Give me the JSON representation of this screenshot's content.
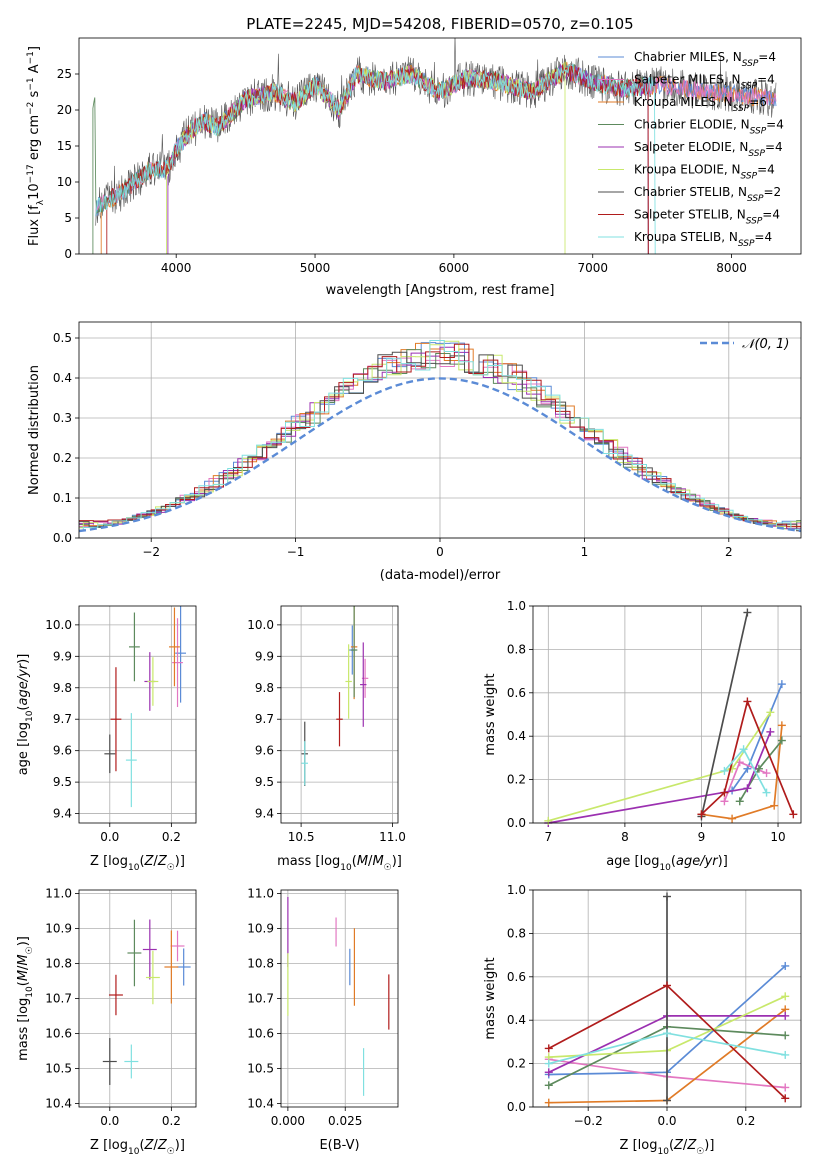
{
  "figure_title": "PLATE=2245, MJD=54208, FIBERID=0570, z=0.105",
  "colors": {
    "chabrier_miles": "#5b8bd6",
    "salpeter_miles": "#e377c2",
    "kroupa_miles": "#e07b27",
    "chabrier_elodie": "#5d8a5d",
    "salpeter_elodie": "#9b30b0",
    "kroupa_elodie": "#c8e86b",
    "chabrier_stelib": "#4d4d4d",
    "salpeter_stelib": "#b01c1c",
    "kroupa_stelib": "#80e0e0"
  },
  "chart_data": [
    {
      "type": "line",
      "panel": "spectrum",
      "title": "PLATE=2245, MJD=54208, FIBERID=0570, z=0.105",
      "xlabel": "wavelength [Angstrom, rest frame]",
      "ylabel": "Flux [f_λ 10^-17 erg cm^-2 s^-1 A^-1]",
      "xlim": [
        3300,
        8500
      ],
      "ylim": [
        0,
        30
      ],
      "xticks": [
        4000,
        5000,
        6000,
        7000,
        8000
      ],
      "yticks": [
        0,
        5,
        10,
        15,
        20,
        25
      ],
      "grid": false,
      "legend_position": "right",
      "legend": [
        {
          "label": "Chabrier MILES, N_SSP=4",
          "key": "chabrier_miles"
        },
        {
          "label": "Salpeter MILES, N_SSP=4",
          "key": "salpeter_miles"
        },
        {
          "label": "Kroupa MILES, N_SSP=6",
          "key": "kroupa_miles"
        },
        {
          "label": "Chabrier ELODIE, N_SSP=4",
          "key": "chabrier_elodie"
        },
        {
          "label": "Salpeter ELODIE, N_SSP=4",
          "key": "salpeter_elodie"
        },
        {
          "label": "Kroupa ELODIE, N_SSP=4",
          "key": "kroupa_elodie"
        },
        {
          "label": "Chabrier STELIB, N_SSP=2",
          "key": "chabrier_stelib"
        },
        {
          "label": "Salpeter STELIB, N_SSP=4",
          "key": "salpeter_stelib"
        },
        {
          "label": "Kroupa STELIB, N_SSP=4",
          "key": "kroupa_stelib"
        }
      ],
      "spectrum_envelope": {
        "x": [
          3420,
          3600,
          3800,
          3950,
          4000,
          4100,
          4200,
          4300,
          4400,
          4500,
          4700,
          4860,
          5000,
          5175,
          5300,
          5500,
          5700,
          5890,
          6100,
          6300,
          6560,
          6800,
          7000,
          7200,
          7500,
          7800,
          8100,
          8300
        ],
        "y": [
          6.5,
          8.5,
          11.5,
          12.0,
          14.5,
          17.0,
          18.5,
          17.5,
          19.5,
          21.5,
          22.5,
          21.0,
          23.5,
          20.0,
          25.0,
          24.0,
          25.0,
          22.5,
          24.5,
          24.0,
          22.5,
          25.5,
          24.0,
          23.0,
          23.5,
          22.5,
          22.0,
          21.5
        ]
      }
    },
    {
      "type": "area",
      "panel": "residual_distribution",
      "xlabel": "(data-model)/error",
      "ylabel": "Normed distribution",
      "xlim": [
        -2.5,
        2.5
      ],
      "ylim": [
        0,
        0.54
      ],
      "xticks": [
        -2,
        -1,
        0,
        1,
        2
      ],
      "yticks": [
        0.0,
        0.1,
        0.2,
        0.3,
        0.4,
        0.5
      ],
      "grid": true,
      "legend_position": "top-right",
      "legend": [
        {
          "label": "𝒩(0, 1)"
        }
      ],
      "normal_curve": {
        "mean": 0,
        "sigma": 1
      }
    },
    {
      "type": "scatter",
      "panel": "age_vs_Z",
      "xlabel": "Z [log10(Z/Z☉)]",
      "ylabel": "age [log10(age/yr)]",
      "xlim": [
        -0.1,
        0.28
      ],
      "ylim": [
        9.37,
        10.06
      ],
      "xticks": [
        0.0,
        0.2
      ],
      "yticks": [
        9.4,
        9.5,
        9.6,
        9.7,
        9.8,
        9.9,
        10.0
      ],
      "grid": true,
      "series": [
        {
          "key": "chabrier_miles",
          "x": 0.23,
          "y": 9.91
        },
        {
          "key": "salpeter_miles",
          "x": 0.22,
          "y": 9.88
        },
        {
          "key": "kroupa_miles",
          "x": 0.21,
          "y": 9.93
        },
        {
          "key": "chabrier_elodie",
          "x": 0.08,
          "y": 9.93
        },
        {
          "key": "salpeter_elodie",
          "x": 0.13,
          "y": 9.82
        },
        {
          "key": "kroupa_elodie",
          "x": 0.14,
          "y": 9.82
        },
        {
          "key": "chabrier_stelib",
          "x": 0.0,
          "y": 9.59
        },
        {
          "key": "salpeter_stelib",
          "x": 0.02,
          "y": 9.7
        },
        {
          "key": "kroupa_stelib",
          "x": 0.07,
          "y": 9.57
        }
      ]
    },
    {
      "type": "scatter",
      "panel": "age_vs_mass",
      "xlabel": "mass [log10(M/M☉)]",
      "xlim": [
        10.39,
        11.03
      ],
      "ylim": [
        9.37,
        10.06
      ],
      "xticks": [
        10.5,
        11.0
      ],
      "yticks": [
        9.4,
        9.5,
        9.6,
        9.7,
        9.8,
        9.9,
        10.0
      ],
      "grid": true,
      "series": [
        {
          "key": "chabrier_miles",
          "x": 10.78,
          "y": 9.92
        },
        {
          "key": "salpeter_miles",
          "x": 10.85,
          "y": 9.83
        },
        {
          "key": "kroupa_miles",
          "x": 10.79,
          "y": 9.93
        },
        {
          "key": "chabrier_elodie",
          "x": 10.79,
          "y": 9.92
        },
        {
          "key": "salpeter_elodie",
          "x": 10.84,
          "y": 9.81
        },
        {
          "key": "kroupa_elodie",
          "x": 10.76,
          "y": 9.82
        },
        {
          "key": "chabrier_stelib",
          "x": 10.52,
          "y": 9.59
        },
        {
          "key": "salpeter_stelib",
          "x": 10.71,
          "y": 9.7
        },
        {
          "key": "kroupa_stelib",
          "x": 10.52,
          "y": 9.56
        }
      ]
    },
    {
      "type": "line",
      "panel": "mass_weight_vs_age",
      "xlabel": "age [log10(age/yr)]",
      "ylabel": "mass weight",
      "xlim": [
        6.8,
        10.3
      ],
      "ylim": [
        0.0,
        1.0
      ],
      "xticks": [
        7,
        8,
        9,
        10
      ],
      "yticks": [
        0.0,
        0.2,
        0.4,
        0.6,
        0.8,
        1.0
      ],
      "grid": true,
      "series": [
        {
          "key": "chabrier_miles",
          "x": [
            9.4,
            9.6,
            10.05
          ],
          "y": [
            0.15,
            0.25,
            0.64
          ]
        },
        {
          "key": "salpeter_miles",
          "x": [
            9.3,
            9.5,
            9.85
          ],
          "y": [
            0.1,
            0.28,
            0.23
          ]
        },
        {
          "key": "kroupa_miles",
          "x": [
            9.0,
            9.4,
            9.95,
            10.05
          ],
          "y": [
            0.04,
            0.02,
            0.08,
            0.45
          ]
        },
        {
          "key": "chabrier_elodie",
          "x": [
            9.5,
            9.75,
            10.05
          ],
          "y": [
            0.1,
            0.25,
            0.38
          ]
        },
        {
          "key": "salpeter_elodie",
          "x": [
            7.0,
            9.6,
            9.9
          ],
          "y": [
            0.0,
            0.16,
            0.42
          ]
        },
        {
          "key": "kroupa_elodie",
          "x": [
            7.0,
            9.4,
            9.9
          ],
          "y": [
            0.01,
            0.25,
            0.51
          ]
        },
        {
          "key": "chabrier_stelib",
          "x": [
            9.0,
            9.6
          ],
          "y": [
            0.03,
            0.97
          ]
        },
        {
          "key": "salpeter_stelib",
          "x": [
            9.0,
            9.3,
            9.6,
            10.2
          ],
          "y": [
            0.04,
            0.14,
            0.56,
            0.04
          ]
        },
        {
          "key": "kroupa_stelib",
          "x": [
            9.3,
            9.55,
            9.85
          ],
          "y": [
            0.24,
            0.34,
            0.14
          ]
        }
      ]
    },
    {
      "type": "scatter",
      "panel": "mass_vs_Z",
      "xlabel": "Z [log10(Z/Z☉)]",
      "ylabel": "mass [log10(M/M☉)]",
      "xlim": [
        -0.1,
        0.28
      ],
      "ylim": [
        10.39,
        11.01
      ],
      "xticks": [
        0.0,
        0.2
      ],
      "yticks": [
        10.4,
        10.5,
        10.6,
        10.7,
        10.8,
        10.9,
        11.0
      ],
      "grid": true,
      "series": [
        {
          "key": "chabrier_miles",
          "x": 0.24,
          "y": 10.79
        },
        {
          "key": "salpeter_miles",
          "x": 0.22,
          "y": 10.85
        },
        {
          "key": "kroupa_miles",
          "x": 0.2,
          "y": 10.79
        },
        {
          "key": "chabrier_elodie",
          "x": 0.08,
          "y": 10.83
        },
        {
          "key": "salpeter_elodie",
          "x": 0.13,
          "y": 10.84
        },
        {
          "key": "kroupa_elodie",
          "x": 0.14,
          "y": 10.76
        },
        {
          "key": "chabrier_stelib",
          "x": 0.0,
          "y": 10.52
        },
        {
          "key": "salpeter_stelib",
          "x": 0.02,
          "y": 10.71
        },
        {
          "key": "kroupa_stelib",
          "x": 0.07,
          "y": 10.52
        }
      ]
    },
    {
      "type": "scatter",
      "panel": "mass_vs_ebv",
      "xlabel": "E(B-V)",
      "xlim": [
        -0.003,
        0.048
      ],
      "ylim": [
        10.39,
        11.01
      ],
      "xticks": [
        0.0,
        0.025
      ],
      "yticks": [
        10.4,
        10.5,
        10.6,
        10.7,
        10.8,
        10.9,
        11.0
      ],
      "grid": true,
      "series": [
        {
          "key": "chabrier_miles",
          "x": 0.027,
          "y": 10.79
        },
        {
          "key": "salpeter_miles",
          "x": 0.021,
          "y": 10.89
        },
        {
          "key": "kroupa_miles",
          "x": 0.029,
          "y": 10.79
        },
        {
          "key": "salpeter_elodie",
          "x": 0.0,
          "y": 10.89
        },
        {
          "key": "kroupa_elodie",
          "x": 0.0,
          "y": 10.74
        },
        {
          "key": "salpeter_stelib",
          "x": 0.044,
          "y": 10.69
        },
        {
          "key": "kroupa_stelib",
          "x": 0.033,
          "y": 10.49
        }
      ]
    },
    {
      "type": "line",
      "panel": "mass_weight_vs_Z",
      "xlabel": "Z [log10(Z/Z☉)]",
      "ylabel": "mass weight",
      "xlim": [
        -0.34,
        0.34
      ],
      "ylim": [
        0.0,
        1.0
      ],
      "xticks": [
        -0.2,
        0.0,
        0.2
      ],
      "yticks": [
        0.0,
        0.2,
        0.4,
        0.6,
        0.8,
        1.0
      ],
      "grid": true,
      "series": [
        {
          "key": "chabrier_miles",
          "x": [
            -0.3,
            0.0,
            0.3
          ],
          "y": [
            0.15,
            0.16,
            0.65
          ]
        },
        {
          "key": "salpeter_miles",
          "x": [
            -0.3,
            0.0,
            0.3
          ],
          "y": [
            0.22,
            0.14,
            0.09
          ]
        },
        {
          "key": "kroupa_miles",
          "x": [
            -0.3,
            0.0,
            0.3
          ],
          "y": [
            0.02,
            0.03,
            0.45
          ]
        },
        {
          "key": "chabrier_elodie",
          "x": [
            -0.3,
            0.0,
            0.3
          ],
          "y": [
            0.1,
            0.37,
            0.33
          ]
        },
        {
          "key": "salpeter_elodie",
          "x": [
            -0.3,
            0.0,
            0.3
          ],
          "y": [
            0.16,
            0.42,
            0.42
          ]
        },
        {
          "key": "kroupa_elodie",
          "x": [
            -0.3,
            0.0,
            0.3
          ],
          "y": [
            0.23,
            0.26,
            0.51
          ]
        },
        {
          "key": "chabrier_stelib",
          "x": [
            0.0,
            0.0
          ],
          "y": [
            0.03,
            0.97
          ]
        },
        {
          "key": "salpeter_stelib",
          "x": [
            -0.3,
            0.0,
            0.3
          ],
          "y": [
            0.27,
            0.56,
            0.04
          ]
        },
        {
          "key": "kroupa_stelib",
          "x": [
            -0.3,
            0.0,
            0.3
          ],
          "y": [
            0.2,
            0.34,
            0.24
          ]
        }
      ]
    }
  ]
}
